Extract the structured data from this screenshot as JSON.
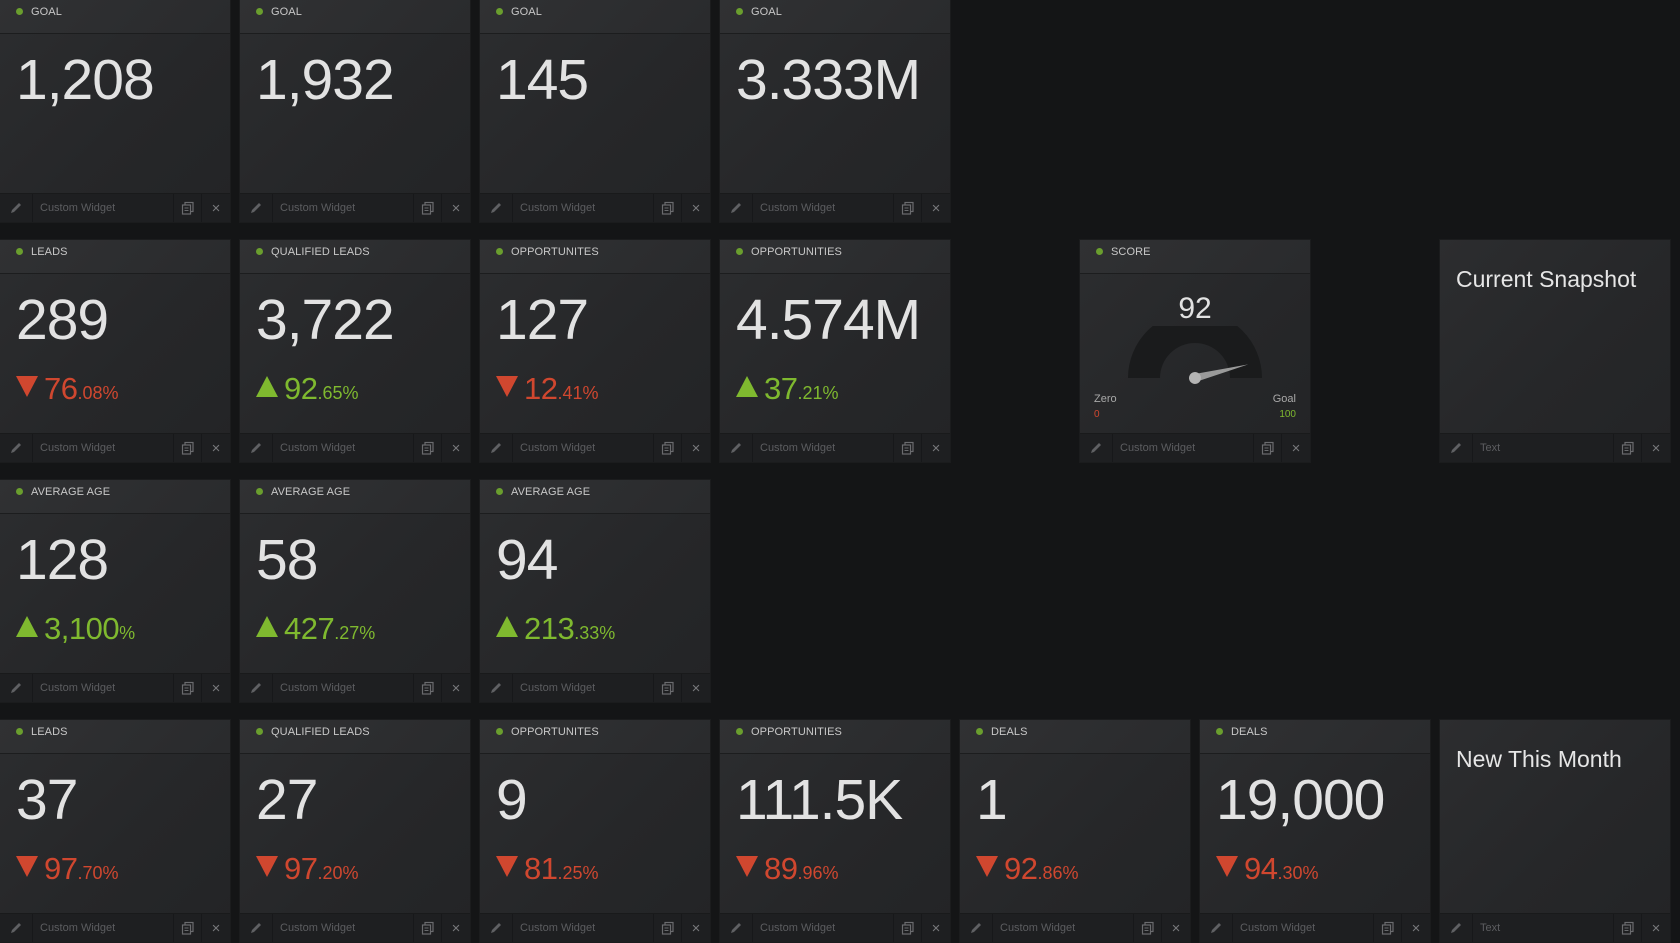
{
  "colors": {
    "accent_up": "#7fb92f",
    "accent_down": "#d0472f",
    "status_dot": "#6a9e2e",
    "background": "#141516"
  },
  "icons": {
    "edit": "pencil-icon",
    "copy": "copy-icon",
    "close": "close-icon",
    "status": "status-dot-icon"
  },
  "widgets": {
    "goal_1": {
      "title": "GOAL",
      "value": "1,208",
      "footer": "Custom Widget"
    },
    "goal_2": {
      "title": "GOAL",
      "value": "1,932",
      "footer": "Custom Widget"
    },
    "goal_3": {
      "title": "GOAL",
      "value": "145",
      "footer": "Custom Widget"
    },
    "goal_4": {
      "title": "GOAL",
      "value": "3.333M",
      "footer": "Custom Widget"
    },
    "leads_1": {
      "title": "LEADS",
      "value": "289",
      "direction": "down",
      "change_int": "76",
      "change_dec": ".08%",
      "footer": "Custom Widget"
    },
    "qleads_1": {
      "title": "QUALIFIED LEADS",
      "value": "3,722",
      "direction": "up",
      "change_int": "92",
      "change_dec": ".65%",
      "footer": "Custom Widget"
    },
    "opp_1": {
      "title": "OPPORTUNITES",
      "value": "127",
      "direction": "down",
      "change_int": "12",
      "change_dec": ".41%",
      "footer": "Custom Widget"
    },
    "opp_2": {
      "title": "OPPORTUNITIES",
      "value": "4.574M",
      "direction": "up",
      "change_int": "37",
      "change_dec": ".21%",
      "footer": "Custom Widget"
    },
    "score": {
      "title": "SCORE",
      "value": "92",
      "min_label": "Zero",
      "min_value": "0",
      "max_label": "Goal",
      "max_value": "100",
      "level": 0.92,
      "footer": "Custom Widget"
    },
    "snapshot": {
      "heading": "Current Snapshot",
      "footer": "Text"
    },
    "age_1": {
      "title": "AVERAGE AGE",
      "value": "128",
      "direction": "up",
      "change_int": "3,100",
      "change_dec": "%",
      "footer": "Custom Widget"
    },
    "age_2": {
      "title": "AVERAGE AGE",
      "value": "58",
      "direction": "up",
      "change_int": "427",
      "change_dec": ".27%",
      "footer": "Custom Widget"
    },
    "age_3": {
      "title": "AVERAGE AGE",
      "value": "94",
      "direction": "up",
      "change_int": "213",
      "change_dec": ".33%",
      "footer": "Custom Widget"
    },
    "leads_2": {
      "title": "LEADS",
      "value": "37",
      "direction": "down",
      "change_int": "97",
      "change_dec": ".70%",
      "footer": "Custom Widget"
    },
    "qleads_2": {
      "title": "QUALIFIED LEADS",
      "value": "27",
      "direction": "down",
      "change_int": "97",
      "change_dec": ".20%",
      "footer": "Custom Widget"
    },
    "opp_3": {
      "title": "OPPORTUNITES",
      "value": "9",
      "direction": "down",
      "change_int": "81",
      "change_dec": ".25%",
      "footer": "Custom Widget"
    },
    "opp_4": {
      "title": "OPPORTUNITIES",
      "value": "111.5K",
      "direction": "down",
      "change_int": "89",
      "change_dec": ".96%",
      "footer": "Custom Widget"
    },
    "deals_1": {
      "title": "DEALS",
      "value": "1",
      "direction": "down",
      "change_int": "92",
      "change_dec": ".86%",
      "footer": "Custom Widget"
    },
    "deals_2": {
      "title": "DEALS",
      "value": "19,000",
      "direction": "down",
      "change_int": "94",
      "change_dec": ".30%",
      "footer": "Custom Widget"
    },
    "new_month": {
      "heading": "New This Month",
      "footer": "Text"
    }
  }
}
